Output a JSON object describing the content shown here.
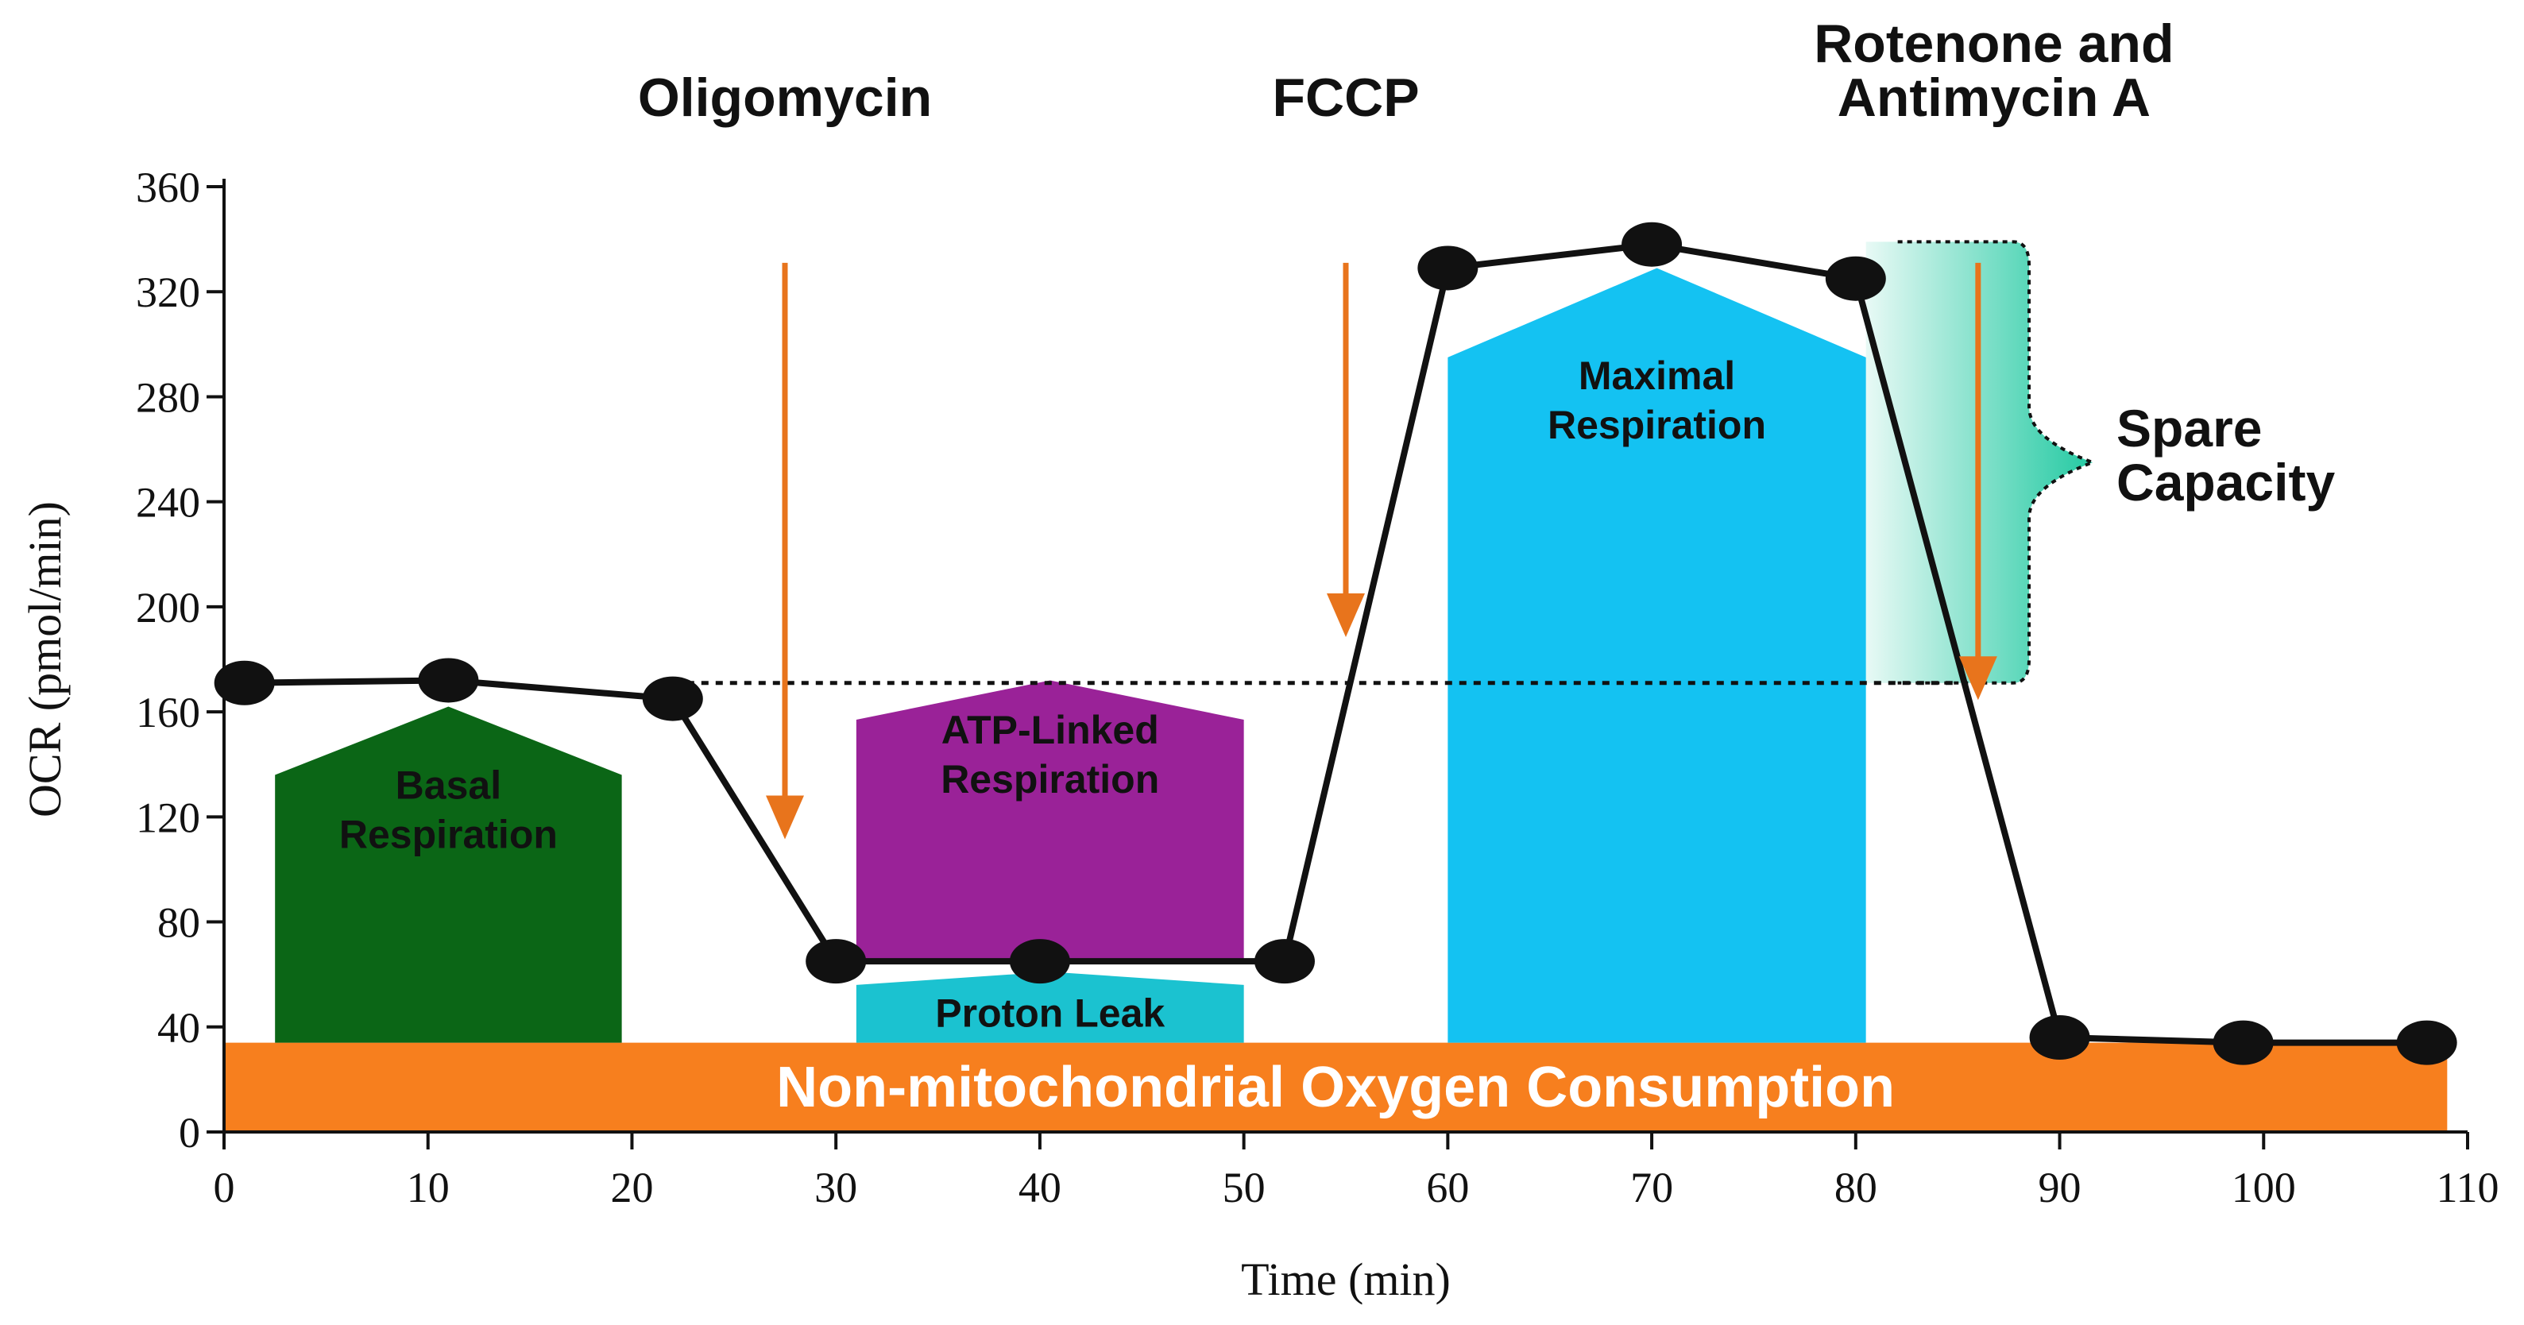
{
  "chart_data": {
    "type": "line",
    "title": "",
    "xlabel": "Time (min)",
    "ylabel": "OCR (pmol/min)",
    "xlim": [
      0,
      110
    ],
    "ylim": [
      0,
      360
    ],
    "xticks": [
      0,
      10,
      20,
      30,
      40,
      50,
      60,
      70,
      80,
      90,
      100,
      110
    ],
    "yticks": [
      0,
      40,
      80,
      120,
      160,
      200,
      240,
      280,
      320,
      360
    ],
    "grid": false,
    "series": [
      {
        "name": "OCR",
        "color": "#111111",
        "points": [
          {
            "x": 1,
            "y": 171
          },
          {
            "x": 11,
            "y": 172
          },
          {
            "x": 22,
            "y": 165
          },
          {
            "x": 30,
            "y": 65
          },
          {
            "x": 40,
            "y": 65
          },
          {
            "x": 52,
            "y": 65
          },
          {
            "x": 60,
            "y": 329
          },
          {
            "x": 70,
            "y": 338
          },
          {
            "x": 80,
            "y": 325
          },
          {
            "x": 90,
            "y": 36
          },
          {
            "x": 99,
            "y": 34
          },
          {
            "x": 108,
            "y": 34
          }
        ]
      }
    ],
    "reference_line": {
      "y": 171,
      "x_from": 22,
      "x_to": 85,
      "style": "dotted"
    },
    "baseline_band": {
      "label": "Non-mitochondrial Oxygen Consumption",
      "y_from": 0,
      "y_to": 34,
      "x_from": 0,
      "x_to": 109,
      "color": "#f77f1e"
    },
    "regions": [
      {
        "id": "basal",
        "label": [
          "Basal",
          "Respiration"
        ],
        "x_from": 2.5,
        "x_to": 19.5,
        "y_from": 34,
        "y_side": 136,
        "y_peak": 162,
        "color": "#0b6616"
      },
      {
        "id": "atp",
        "label": [
          "ATP-Linked",
          "Respiration"
        ],
        "x_from": 31,
        "x_to": 50,
        "y_from": 65,
        "y_side": 157,
        "y_peak": 172,
        "color": "#9a2298"
      },
      {
        "id": "leak",
        "label": [
          "Proton Leak"
        ],
        "x_from": 31,
        "x_to": 50,
        "y_from": 34,
        "y_side": 56,
        "y_peak": 61,
        "color": "#1bc2d0"
      },
      {
        "id": "maximal",
        "label": [
          "Maximal",
          "Respiration"
        ],
        "x_from": 60,
        "x_to": 80.5,
        "y_from": 34,
        "y_side": 295,
        "y_peak": 329,
        "color": "#14c2f2"
      }
    ],
    "injections": [
      {
        "label": [
          "Oligomycin"
        ],
        "x": 27.5,
        "y_from": 331,
        "y_to": 113
      },
      {
        "label": [
          "FCCP"
        ],
        "x": 55,
        "y_from": 331,
        "y_to": 190
      },
      {
        "label": [
          "Rotenone and",
          "Antimycin A"
        ],
        "x": 86,
        "y_from": 331,
        "y_to": 166
      }
    ],
    "spare_capacity": {
      "label": [
        "Spare",
        "Capacity"
      ],
      "x_from": 80.5,
      "x_to": 88.5,
      "y_from": 171,
      "y_to": 339,
      "color": "#19c79e"
    }
  }
}
